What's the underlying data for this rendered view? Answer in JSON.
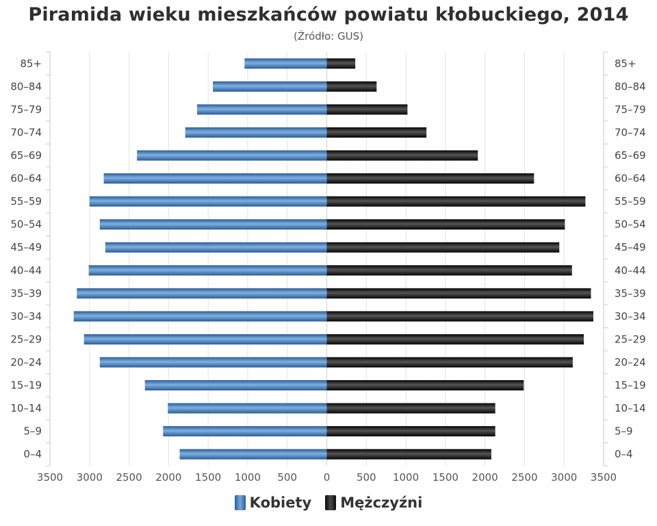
{
  "header": {
    "title": "Piramida wieku mieszkańców powiatu kłobuckiego, 2014",
    "subtitle": "(Źródło: GUS)"
  },
  "legend": {
    "female_label": "Kobiety",
    "male_label": "Mężczyźni"
  },
  "colors": {
    "female": "#3a72b0",
    "male": "#1a1a1a",
    "grid": "#e3e3e3"
  },
  "chart_data": {
    "type": "bar",
    "orientation": "horizontal",
    "title": "Piramida wieku mieszkańców powiatu kłobuckiego, 2014",
    "subtitle": "(Źródło: GUS)",
    "categories": [
      "85+",
      "80–84",
      "75–79",
      "70–74",
      "65–69",
      "60–64",
      "55–59",
      "50–54",
      "45–49",
      "40–44",
      "35–39",
      "30–34",
      "25–29",
      "20–24",
      "15–19",
      "10–14",
      "5–9",
      "0–4"
    ],
    "series": [
      {
        "name": "Kobiety",
        "direction": "left",
        "values": [
          1040,
          1440,
          1640,
          1790,
          2400,
          2820,
          3000,
          2870,
          2800,
          3010,
          3160,
          3200,
          3070,
          2870,
          2300,
          2010,
          2070,
          1860
        ]
      },
      {
        "name": "Mężczyźni",
        "direction": "right",
        "values": [
          360,
          630,
          1020,
          1260,
          1910,
          2620,
          3270,
          3010,
          2940,
          3100,
          3340,
          3370,
          3250,
          3110,
          2490,
          2130,
          2130,
          2080
        ]
      }
    ],
    "xlim": [
      -3500,
      3500
    ],
    "x_ticks": [
      "3500",
      "3000",
      "2500",
      "2000",
      "1500",
      "1000",
      "500",
      "0",
      "500",
      "1000",
      "1500",
      "2000",
      "2500",
      "3000",
      "3500"
    ],
    "grid": true,
    "legend_position": "bottom-center",
    "category_labels": "both-sides"
  }
}
